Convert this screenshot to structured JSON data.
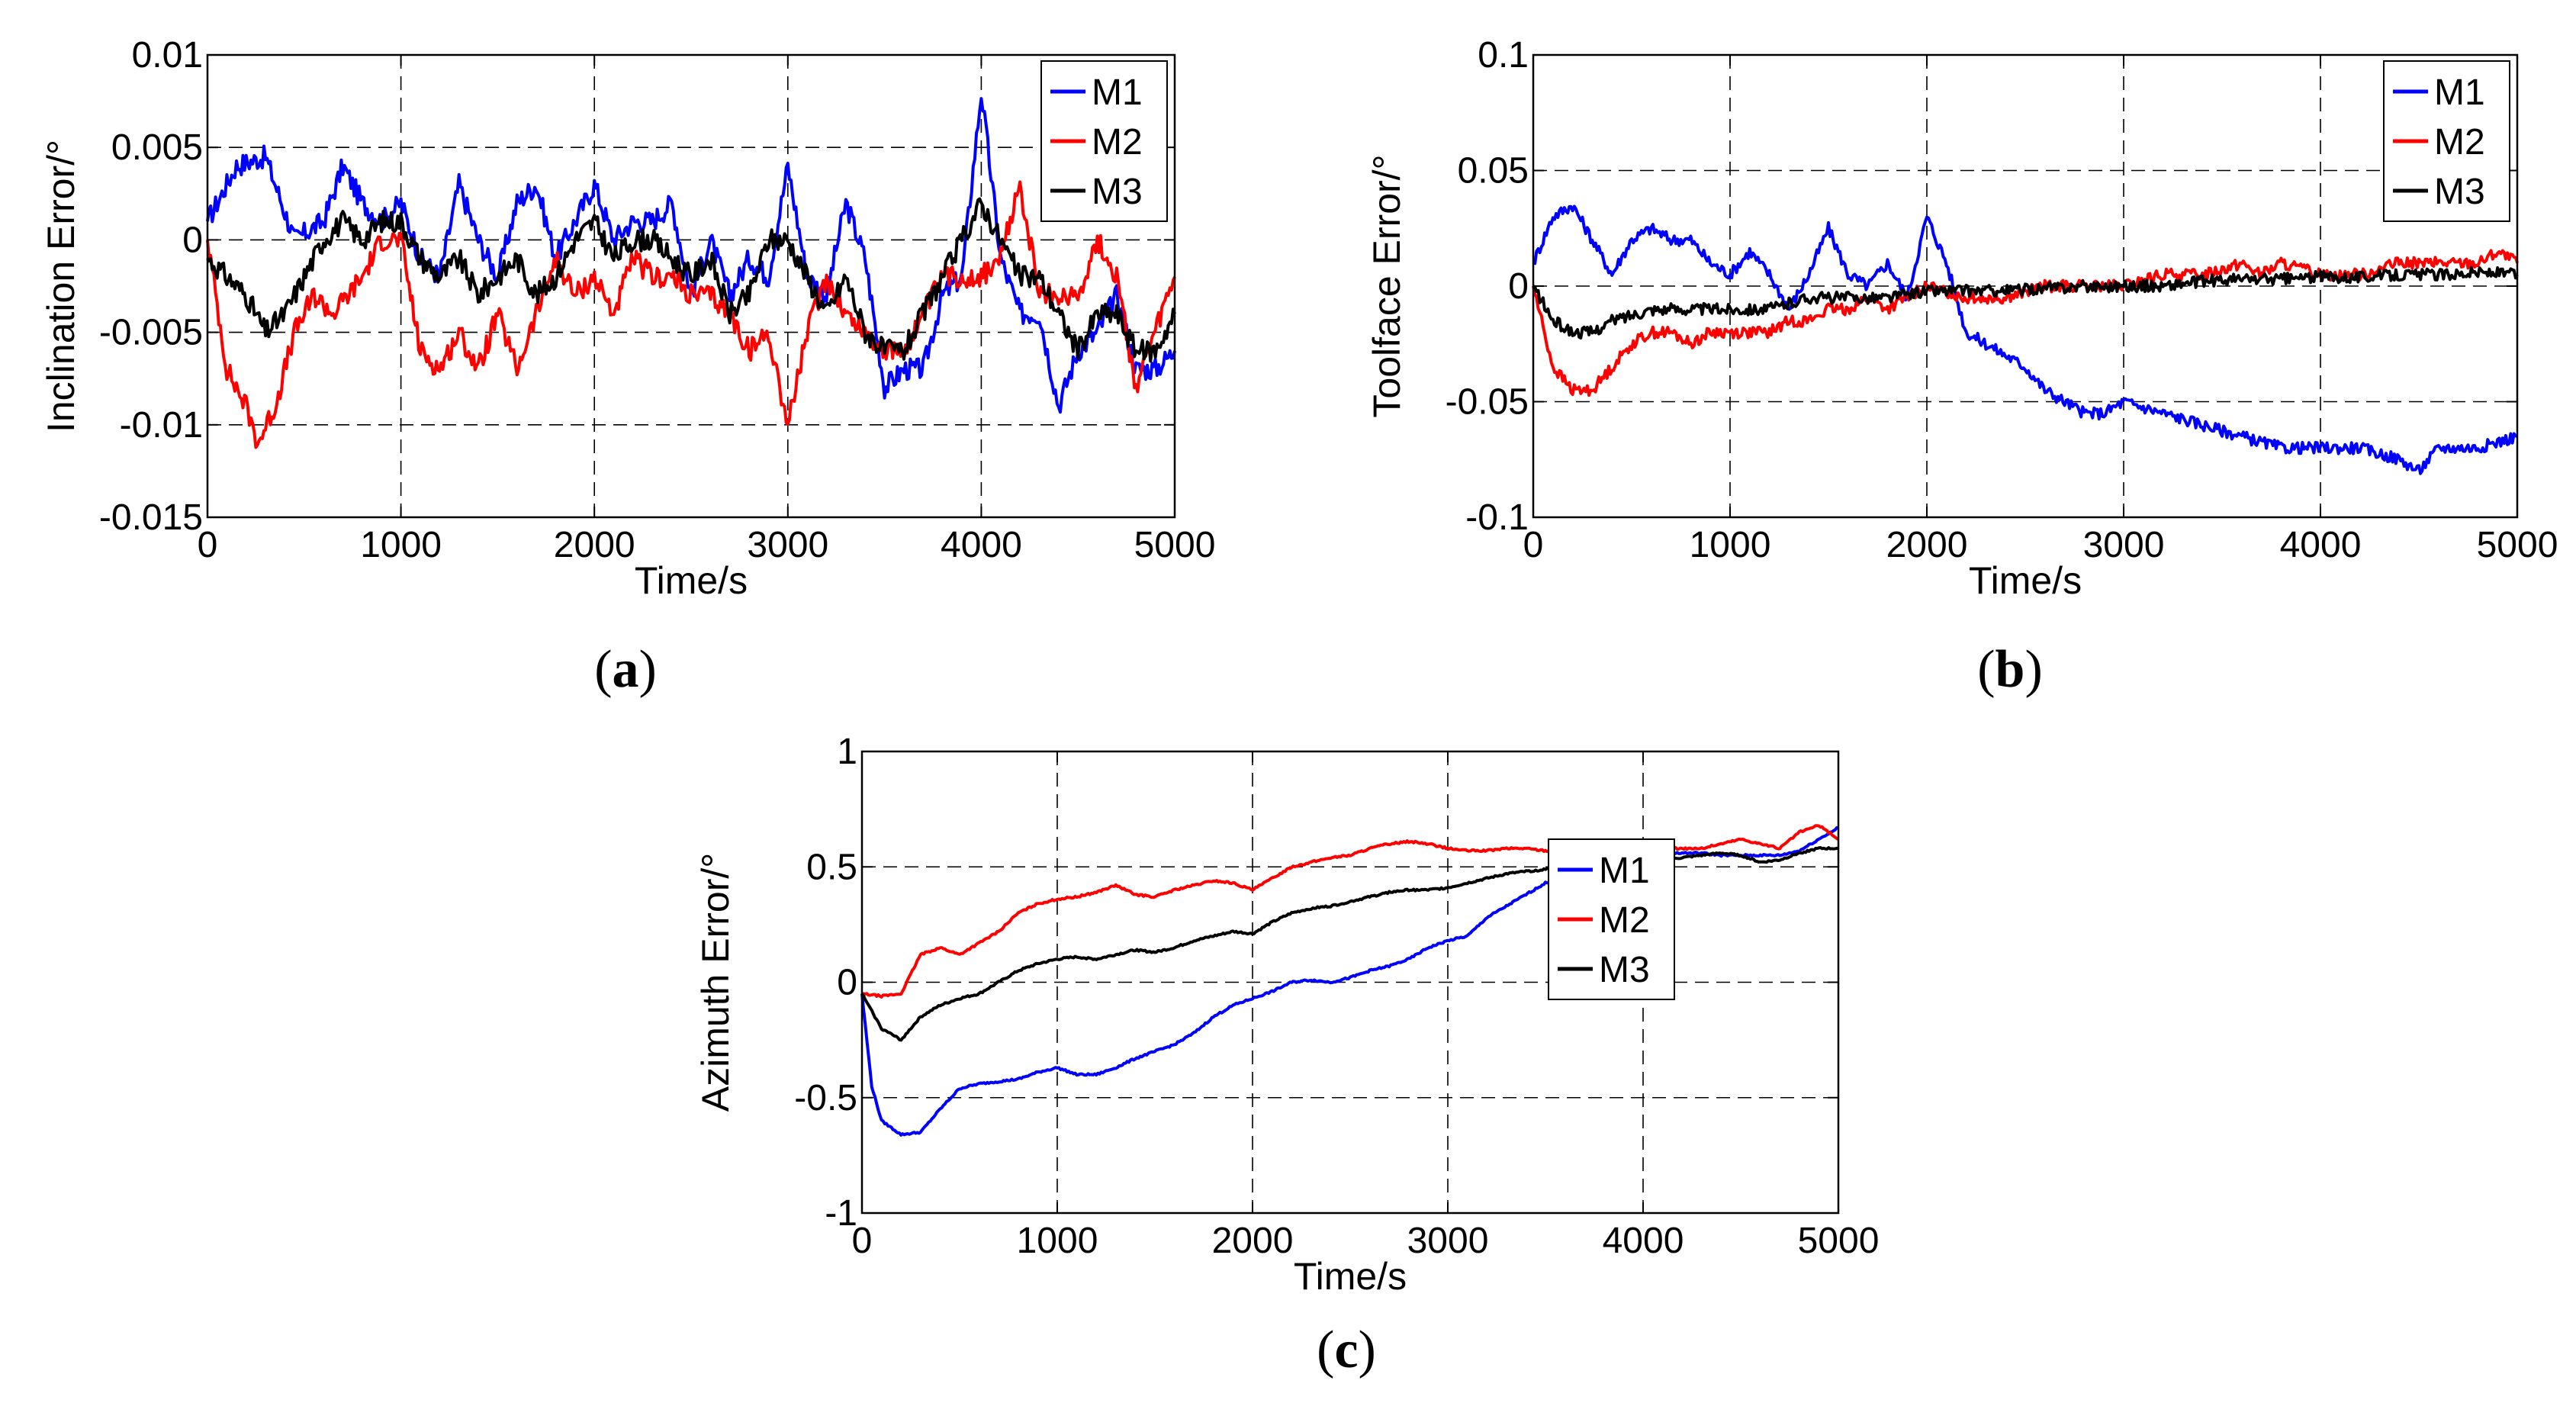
{
  "chart_data": [
    {
      "type": "line",
      "caption_open": "(",
      "caption_letter": "a",
      "caption_close": ")",
      "xlabel": "Time/s",
      "ylabel": "Inclination Error/°",
      "xlim": [
        0,
        5000
      ],
      "ylim": [
        -0.015,
        0.01
      ],
      "xticks": [
        0,
        1000,
        2000,
        3000,
        4000,
        5000
      ],
      "xtick_labels": [
        "0",
        "1000",
        "2000",
        "3000",
        "4000",
        "5000"
      ],
      "yticks": [
        -0.015,
        -0.01,
        -0.005,
        0,
        0.005,
        0.01
      ],
      "ytick_labels": [
        "-0.015",
        "-0.01",
        "-0.005",
        "0",
        "0.005",
        "0.01"
      ],
      "legend_position": "top-right",
      "noise": 0.0006,
      "series": [
        {
          "name": "M1",
          "color": "#0000ff",
          "x": [
            0,
            150,
            300,
            450,
            600,
            700,
            800,
            900,
            1000,
            1100,
            1200,
            1300,
            1400,
            1500,
            1600,
            1700,
            1800,
            1900,
            2000,
            2100,
            2200,
            2300,
            2400,
            2500,
            2600,
            2700,
            2800,
            2900,
            3000,
            3100,
            3200,
            3300,
            3400,
            3500,
            3600,
            3700,
            3800,
            3900,
            4000,
            4100,
            4200,
            4300,
            4400,
            4500,
            4600,
            4700,
            4800,
            4900,
            5000
          ],
          "y": [
            0.001,
            0.004,
            0.0045,
            0,
            0.001,
            0.004,
            0.002,
            0.001,
            0.002,
            -0.001,
            -0.002,
            0.003,
            0,
            -0.002,
            0.002,
            0.003,
            -0.001,
            0.001,
            0.003,
            0,
            0.001,
            0.001,
            0.002,
            -0.003,
            0,
            -0.003,
            -0.001,
            -0.002,
            0.004,
            -0.002,
            -0.003,
            0.002,
            -0.001,
            -0.008,
            -0.007,
            -0.007,
            -0.003,
            -0.002,
            0.008,
            -0.001,
            -0.004,
            -0.004,
            -0.009,
            -0.006,
            -0.005,
            -0.003,
            -0.007,
            -0.007,
            -0.006
          ]
        },
        {
          "name": "M2",
          "color": "#ff0000",
          "x": [
            0,
            100,
            200,
            260,
            350,
            450,
            550,
            650,
            800,
            900,
            1000,
            1100,
            1200,
            1300,
            1400,
            1500,
            1600,
            1700,
            1800,
            1900,
            2000,
            2100,
            2200,
            2300,
            2400,
            2500,
            2600,
            2700,
            2800,
            2900,
            3000,
            3100,
            3200,
            3300,
            3400,
            3500,
            3600,
            3700,
            3800,
            3900,
            4000,
            4100,
            4200,
            4300,
            4400,
            4500,
            4600,
            4700,
            4800,
            4900,
            5000
          ],
          "y": [
            0,
            -0.007,
            -0.009,
            -0.011,
            -0.009,
            -0.005,
            -0.003,
            -0.004,
            -0.002,
            0,
            0,
            -0.006,
            -0.007,
            -0.005,
            -0.007,
            -0.004,
            -0.007,
            -0.004,
            -0.001,
            -0.003,
            -0.002,
            -0.004,
            -0.001,
            -0.002,
            -0.002,
            -0.003,
            -0.003,
            -0.004,
            -0.006,
            -0.005,
            -0.01,
            -0.005,
            -0.002,
            -0.004,
            -0.005,
            -0.006,
            -0.006,
            -0.004,
            -0.002,
            -0.002,
            -0.002,
            -0.001,
            0.003,
            -0.003,
            -0.003,
            -0.003,
            0,
            -0.002,
            -0.008,
            -0.005,
            -0.002
          ]
        },
        {
          "name": "M3",
          "color": "#000000",
          "x": [
            0,
            100,
            200,
            300,
            400,
            500,
            600,
            700,
            800,
            900,
            1000,
            1100,
            1200,
            1300,
            1400,
            1500,
            1600,
            1700,
            1800,
            1900,
            2000,
            2100,
            2200,
            2300,
            2400,
            2500,
            2600,
            2700,
            2800,
            2900,
            3000,
            3100,
            3200,
            3300,
            3400,
            3500,
            3600,
            3700,
            3800,
            3900,
            4000,
            4100,
            4200,
            4300,
            4400,
            4500,
            4600,
            4700,
            4800,
            4900,
            5000
          ],
          "y": [
            -0.001,
            -0.002,
            -0.003,
            -0.005,
            -0.004,
            -0.002,
            0,
            0.001,
            0,
            0.001,
            0.001,
            -0.001,
            -0.002,
            -0.001,
            -0.003,
            -0.002,
            -0.001,
            -0.003,
            -0.002,
            0,
            0.001,
            -0.001,
            0,
            0,
            -0.001,
            -0.002,
            -0.001,
            -0.004,
            -0.003,
            0,
            0,
            -0.002,
            -0.004,
            -0.002,
            -0.005,
            -0.006,
            -0.006,
            -0.004,
            -0.002,
            0,
            0.002,
            0,
            -0.002,
            -0.002,
            -0.004,
            -0.006,
            -0.004,
            -0.004,
            -0.006,
            -0.006,
            -0.004
          ]
        }
      ]
    },
    {
      "type": "line",
      "caption_open": "(",
      "caption_letter": "b",
      "caption_close": ")",
      "xlabel": "Time/s",
      "ylabel": "Toolface Error/°",
      "xlim": [
        0,
        5000
      ],
      "ylim": [
        -0.1,
        0.1
      ],
      "xticks": [
        0,
        1000,
        2000,
        3000,
        4000,
        5000
      ],
      "xtick_labels": [
        "0",
        "1000",
        "2000",
        "3000",
        "4000",
        "5000"
      ],
      "yticks": [
        -0.1,
        -0.05,
        0,
        0.05,
        0.1
      ],
      "ytick_labels": [
        "-0.1",
        "-0.05",
        "0",
        "0.05",
        "0.1"
      ],
      "legend_position": "top-right",
      "noise": 0.0025,
      "series": [
        {
          "name": "M1",
          "color": "#0000ff",
          "x": [
            0,
            100,
            200,
            300,
            400,
            500,
            600,
            700,
            800,
            900,
            1000,
            1100,
            1200,
            1300,
            1400,
            1500,
            1600,
            1700,
            1800,
            1900,
            2000,
            2100,
            2200,
            2300,
            2400,
            2500,
            2600,
            2700,
            2800,
            2900,
            3000,
            3200,
            3400,
            3600,
            3800,
            4000,
            4200,
            4400,
            4500,
            4600,
            4800,
            5000
          ],
          "y": [
            0.01,
            0.03,
            0.035,
            0.02,
            0.005,
            0.02,
            0.025,
            0.02,
            0.02,
            0.01,
            0.005,
            0.015,
            0.005,
            -0.01,
            0.005,
            0.025,
            0.005,
            0.0,
            0.01,
            -0.005,
            0.03,
            0.01,
            -0.02,
            -0.025,
            -0.03,
            -0.035,
            -0.045,
            -0.05,
            -0.055,
            -0.055,
            -0.05,
            -0.055,
            -0.06,
            -0.065,
            -0.07,
            -0.07,
            -0.07,
            -0.075,
            -0.08,
            -0.07,
            -0.07,
            -0.065
          ]
        },
        {
          "name": "M2",
          "color": "#ff0000",
          "x": [
            0,
            100,
            200,
            300,
            400,
            500,
            600,
            700,
            800,
            900,
            1000,
            1100,
            1200,
            1300,
            1400,
            1500,
            1600,
            1700,
            1800,
            1900,
            2000,
            2200,
            2400,
            2600,
            2800,
            3000,
            3200,
            3400,
            3600,
            3700,
            3800,
            4000,
            4200,
            4400,
            4600,
            4800,
            4900,
            5000
          ],
          "y": [
            0,
            -0.035,
            -0.045,
            -0.045,
            -0.035,
            -0.025,
            -0.02,
            -0.02,
            -0.025,
            -0.02,
            -0.02,
            -0.02,
            -0.02,
            -0.015,
            -0.015,
            -0.01,
            -0.01,
            -0.005,
            -0.01,
            -0.005,
            0,
            -0.005,
            -0.005,
            0,
            0,
            0,
            0.005,
            0.005,
            0.01,
            0.005,
            0.01,
            0.005,
            0.005,
            0.01,
            0.01,
            0.01,
            0.015,
            0.01
          ]
        },
        {
          "name": "M3",
          "color": "#000000",
          "x": [
            0,
            100,
            200,
            300,
            400,
            600,
            800,
            1000,
            1200,
            1400,
            1600,
            1800,
            2000,
            2200,
            2400,
            2600,
            2800,
            3000,
            3200,
            3400,
            3600,
            3800,
            4000,
            4200,
            4400,
            4600,
            4800,
            5000
          ],
          "y": [
            0,
            -0.015,
            -0.02,
            -0.02,
            -0.015,
            -0.01,
            -0.01,
            -0.01,
            -0.01,
            -0.005,
            -0.005,
            -0.005,
            -0.002,
            -0.002,
            -0.002,
            -0.001,
            0,
            0,
            0,
            0.002,
            0.003,
            0.003,
            0.004,
            0.004,
            0.005,
            0.005,
            0.006,
            0.005
          ]
        }
      ]
    },
    {
      "type": "line",
      "caption_open": "(",
      "caption_letter": "c",
      "caption_close": ")",
      "xlabel": "Time/s",
      "ylabel": "Azimuth Error/°",
      "xlim": [
        0,
        5000
      ],
      "ylim": [
        -1,
        1
      ],
      "xticks": [
        0,
        1000,
        2000,
        3000,
        4000,
        5000
      ],
      "xtick_labels": [
        "0",
        "1000",
        "2000",
        "3000",
        "4000",
        "5000"
      ],
      "yticks": [
        -1,
        -0.5,
        0,
        0.5,
        1
      ],
      "ytick_labels": [
        "-1",
        "-0.5",
        "0",
        "0.5",
        "1"
      ],
      "legend_position": "center-right",
      "noise": 0.004,
      "series": [
        {
          "name": "M1",
          "color": "#0000ff",
          "x": [
            0,
            50,
            100,
            200,
            300,
            400,
            500,
            600,
            700,
            800,
            900,
            1000,
            1100,
            1200,
            1300,
            1400,
            1500,
            1600,
            1700,
            1800,
            1900,
            2000,
            2100,
            2200,
            2300,
            2400,
            2500,
            2600,
            2700,
            2800,
            2900,
            3000,
            3100,
            3200,
            3300,
            3400,
            3500,
            3600,
            3700,
            3800,
            3900,
            4000,
            4100,
            4200,
            4300,
            4400,
            4500,
            4600,
            4700,
            4800,
            4900,
            5000
          ],
          "y": [
            -0.05,
            -0.45,
            -0.6,
            -0.66,
            -0.65,
            -0.55,
            -0.46,
            -0.44,
            -0.43,
            -0.42,
            -0.39,
            -0.37,
            -0.4,
            -0.4,
            -0.37,
            -0.33,
            -0.3,
            -0.27,
            -0.22,
            -0.15,
            -0.1,
            -0.07,
            -0.04,
            0,
            0.01,
            0.0,
            0.02,
            0.05,
            0.07,
            0.1,
            0.15,
            0.18,
            0.2,
            0.28,
            0.33,
            0.38,
            0.43,
            0.45,
            0.49,
            0.52,
            0.54,
            0.55,
            0.56,
            0.56,
            0.56,
            0.55,
            0.55,
            0.55,
            0.55,
            0.57,
            0.62,
            0.67
          ]
        },
        {
          "name": "M2",
          "color": "#ff0000",
          "x": [
            0,
            100,
            200,
            300,
            400,
            500,
            600,
            700,
            800,
            900,
            1000,
            1100,
            1200,
            1300,
            1400,
            1500,
            1600,
            1700,
            1800,
            1900,
            2000,
            2100,
            2200,
            2300,
            2400,
            2500,
            2600,
            2700,
            2800,
            2900,
            3000,
            3100,
            3200,
            3300,
            3400,
            3500,
            3600,
            3700,
            3800,
            3900,
            4000,
            4100,
            4200,
            4300,
            4400,
            4500,
            4600,
            4700,
            4800,
            4900,
            5000
          ],
          "y": [
            -0.05,
            -0.06,
            -0.05,
            0.12,
            0.15,
            0.12,
            0.17,
            0.22,
            0.3,
            0.34,
            0.36,
            0.37,
            0.39,
            0.42,
            0.38,
            0.37,
            0.4,
            0.42,
            0.44,
            0.43,
            0.4,
            0.45,
            0.5,
            0.52,
            0.54,
            0.55,
            0.58,
            0.6,
            0.61,
            0.6,
            0.58,
            0.57,
            0.57,
            0.58,
            0.58,
            0.57,
            0.57,
            0.57,
            0.58,
            0.58,
            0.57,
            0.58,
            0.58,
            0.58,
            0.6,
            0.62,
            0.6,
            0.58,
            0.65,
            0.68,
            0.62
          ]
        },
        {
          "name": "M3",
          "color": "#000000",
          "x": [
            0,
            100,
            200,
            300,
            400,
            500,
            600,
            700,
            800,
            900,
            1000,
            1100,
            1200,
            1300,
            1400,
            1500,
            1600,
            1700,
            1800,
            1900,
            2000,
            2100,
            2200,
            2300,
            2400,
            2500,
            2600,
            2700,
            2800,
            2900,
            3000,
            3100,
            3200,
            3300,
            3400,
            3500,
            3600,
            3700,
            3800,
            3900,
            4000,
            4100,
            4200,
            4300,
            4400,
            4500,
            4600,
            4700,
            4800,
            4900,
            5000
          ],
          "y": [
            -0.05,
            -0.2,
            -0.25,
            -0.15,
            -0.1,
            -0.07,
            -0.05,
            0.0,
            0.05,
            0.08,
            0.1,
            0.11,
            0.1,
            0.12,
            0.14,
            0.13,
            0.15,
            0.18,
            0.2,
            0.22,
            0.21,
            0.26,
            0.3,
            0.32,
            0.33,
            0.35,
            0.37,
            0.39,
            0.4,
            0.4,
            0.41,
            0.43,
            0.45,
            0.47,
            0.48,
            0.49,
            0.5,
            0.5,
            0.51,
            0.51,
            0.52,
            0.53,
            0.54,
            0.55,
            0.56,
            0.55,
            0.52,
            0.53,
            0.56,
            0.58,
            0.58
          ]
        }
      ]
    }
  ]
}
